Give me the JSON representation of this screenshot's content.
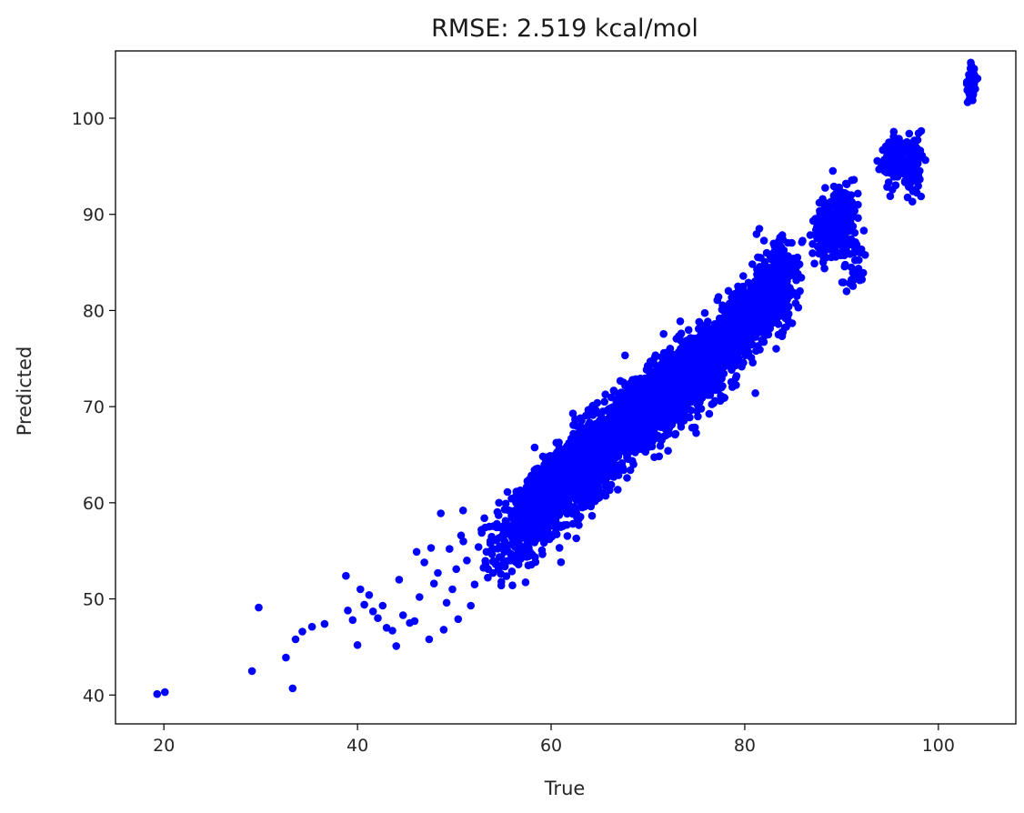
{
  "chart_data": {
    "type": "scatter",
    "title": "RMSE: 2.519 kcal/mol",
    "xlabel": "True",
    "ylabel": "Predicted",
    "xlim": [
      15,
      108
    ],
    "ylim": [
      37,
      107
    ],
    "xticks": [
      20,
      40,
      60,
      80,
      100
    ],
    "yticks": [
      40,
      50,
      60,
      70,
      80,
      90,
      100
    ],
    "grid": false,
    "legend": "none",
    "point_color": "#0000ff",
    "series": [
      {
        "points": [
          [
            19.3,
            40.1
          ],
          [
            20.1,
            40.3
          ],
          [
            29.1,
            42.5
          ],
          [
            29.8,
            49.1
          ],
          [
            32.6,
            43.9
          ],
          [
            33.3,
            40.7
          ],
          [
            33.6,
            45.8
          ],
          [
            34.3,
            46.6
          ],
          [
            35.3,
            47.1
          ],
          [
            36.6,
            47.4
          ],
          [
            38.8,
            52.4
          ],
          [
            39.0,
            48.8
          ],
          [
            39.5,
            47.8
          ],
          [
            40.0,
            45.2
          ],
          [
            40.3,
            51.0
          ],
          [
            40.7,
            49.4
          ],
          [
            41.2,
            50.4
          ],
          [
            41.6,
            48.7
          ],
          [
            42.1,
            48.0
          ],
          [
            42.6,
            49.3
          ],
          [
            43.0,
            47.0
          ],
          [
            43.6,
            46.7
          ],
          [
            44.0,
            45.1
          ],
          [
            44.3,
            52.0
          ],
          [
            44.7,
            48.3
          ],
          [
            45.4,
            47.5
          ],
          [
            45.9,
            47.7
          ],
          [
            46.1,
            54.9
          ],
          [
            46.4,
            50.2
          ],
          [
            46.9,
            53.8
          ],
          [
            47.4,
            45.8
          ],
          [
            47.6,
            55.3
          ],
          [
            47.9,
            51.6
          ],
          [
            48.3,
            52.7
          ],
          [
            48.6,
            58.9
          ],
          [
            48.9,
            46.8
          ],
          [
            49.2,
            49.6
          ],
          [
            49.5,
            55.2
          ],
          [
            49.8,
            51.0
          ],
          [
            50.2,
            53.1
          ],
          [
            50.4,
            47.9
          ],
          [
            50.7,
            56.6
          ],
          [
            50.9,
            59.2
          ],
          [
            51.3,
            54.0
          ],
          [
            51.7,
            49.3
          ],
          [
            52.1,
            51.5
          ],
          [
            52.5,
            55.4
          ],
          [
            52.8,
            57.2
          ],
          [
            53.1,
            58.4
          ],
          [
            53.5,
            53.1
          ],
          [
            54.0,
            55.2
          ],
          [
            54.4,
            57.8
          ],
          [
            54.8,
            52.6
          ],
          [
            55.2,
            59.3
          ]
        ],
        "clusters": [
          {
            "x": 56.5,
            "y": 56.8,
            "sx": 1.6,
            "sy": 2.6,
            "n": 220
          },
          {
            "x": 59.0,
            "y": 59.5,
            "sx": 1.6,
            "sy": 2.7,
            "n": 300
          },
          {
            "x": 62.0,
            "y": 62.5,
            "sx": 1.7,
            "sy": 2.7,
            "n": 480
          },
          {
            "x": 65.0,
            "y": 65.2,
            "sx": 1.7,
            "sy": 2.6,
            "n": 520
          },
          {
            "x": 68.0,
            "y": 68.5,
            "sx": 1.7,
            "sy": 2.5,
            "n": 560
          },
          {
            "x": 71.0,
            "y": 70.5,
            "sx": 1.7,
            "sy": 2.5,
            "n": 560
          },
          {
            "x": 74.0,
            "y": 72.8,
            "sx": 1.6,
            "sy": 2.6,
            "n": 480
          },
          {
            "x": 77.0,
            "y": 75.5,
            "sx": 1.6,
            "sy": 2.8,
            "n": 420
          },
          {
            "x": 80.5,
            "y": 79.5,
            "sx": 1.3,
            "sy": 2.4,
            "n": 220
          },
          {
            "x": 83.0,
            "y": 82.5,
            "sx": 1.2,
            "sy": 3.0,
            "n": 360
          },
          {
            "x": 88.5,
            "y": 88.5,
            "sx": 0.8,
            "sy": 1.6,
            "n": 140
          },
          {
            "x": 90.0,
            "y": 89.5,
            "sx": 0.8,
            "sy": 2.6,
            "n": 180
          },
          {
            "x": 91.5,
            "y": 85.0,
            "sx": 0.6,
            "sy": 2.2,
            "n": 40
          },
          {
            "x": 95.5,
            "y": 95.5,
            "sx": 0.6,
            "sy": 1.6,
            "n": 120
          },
          {
            "x": 97.3,
            "y": 95.0,
            "sx": 0.5,
            "sy": 2.0,
            "n": 90
          },
          {
            "x": 103.4,
            "y": 103.5,
            "sx": 0.18,
            "sy": 1.1,
            "n": 110
          }
        ]
      }
    ]
  }
}
